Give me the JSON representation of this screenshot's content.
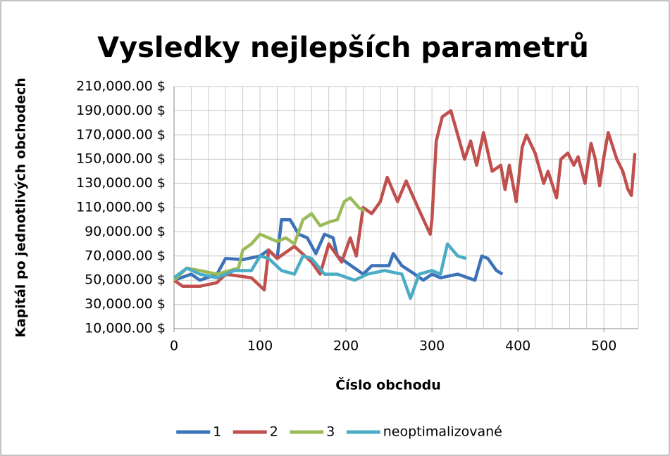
{
  "chart_data": {
    "type": "line",
    "title": "Vysledky nejlepších parametrů",
    "xlabel": "Číslo obchodu",
    "ylabel": "Kapitál po jednotlivých obchodech",
    "xlim": [
      0,
      540
    ],
    "xticks": [
      0,
      100,
      200,
      300,
      400,
      500
    ],
    "xminor": 20,
    "ylim": [
      10000,
      210000
    ],
    "yticks": [
      {
        "value": 10000,
        "label": "10,000.00 $"
      },
      {
        "value": 30000,
        "label": "30,000.00 $"
      },
      {
        "value": 50000,
        "label": "50,000.00 $"
      },
      {
        "value": 70000,
        "label": "70,000.00 $"
      },
      {
        "value": 90000,
        "label": "90,000.00 $"
      },
      {
        "value": 110000,
        "label": "110,000.00 $"
      },
      {
        "value": 130000,
        "label": "130,000.00 $"
      },
      {
        "value": 150000,
        "label": "150,000.00 $"
      },
      {
        "value": 170000,
        "label": "170,000.00 $"
      },
      {
        "value": 190000,
        "label": "190,000.00 $"
      },
      {
        "value": 210000,
        "label": "210,000.00 $"
      }
    ],
    "grid": true,
    "legend": "bottom",
    "series": [
      {
        "name": "1",
        "color": "#3c72b8",
        "x": [
          0,
          20,
          30,
          50,
          60,
          80,
          100,
          110,
          120,
          125,
          135,
          145,
          155,
          165,
          175,
          185,
          190,
          200,
          210,
          220,
          230,
          250,
          255,
          265,
          280,
          290,
          300,
          310,
          330,
          350,
          358,
          365,
          375,
          382
        ],
        "values": [
          50000,
          55000,
          50000,
          55000,
          68000,
          67000,
          70000,
          75000,
          68000,
          100000,
          100000,
          88000,
          85000,
          72000,
          88000,
          85000,
          70000,
          65000,
          60000,
          55000,
          62000,
          62000,
          72000,
          62000,
          55000,
          50000,
          55000,
          52000,
          55000,
          50000,
          70000,
          68000,
          58000,
          55000
        ]
      },
      {
        "name": "2",
        "color": "#c0504d",
        "x": [
          0,
          10,
          30,
          50,
          60,
          90,
          105,
          110,
          120,
          140,
          160,
          170,
          180,
          195,
          205,
          212,
          220,
          230,
          240,
          248,
          260,
          270,
          285,
          298,
          300,
          305,
          312,
          322,
          330,
          338,
          345,
          352,
          360,
          370,
          380,
          385,
          390,
          398,
          405,
          410,
          420,
          430,
          435,
          445,
          450,
          458,
          465,
          470,
          478,
          485,
          490,
          495,
          500,
          505,
          515,
          522,
          528,
          532,
          536
        ],
        "values": [
          50000,
          45000,
          45000,
          48000,
          55000,
          52000,
          42000,
          75000,
          68000,
          78000,
          65000,
          55000,
          80000,
          65000,
          85000,
          70000,
          110000,
          105000,
          115000,
          135000,
          115000,
          132000,
          108000,
          88000,
          100000,
          165000,
          185000,
          190000,
          170000,
          150000,
          165000,
          145000,
          172000,
          140000,
          145000,
          125000,
          145000,
          115000,
          160000,
          170000,
          155000,
          130000,
          140000,
          118000,
          150000,
          155000,
          145000,
          152000,
          130000,
          163000,
          150000,
          128000,
          152000,
          172000,
          150000,
          140000,
          125000,
          120000,
          155000
        ]
      },
      {
        "name": "3",
        "color": "#9bbb59",
        "x": [
          0,
          15,
          30,
          50,
          75,
          80,
          90,
          100,
          110,
          120,
          130,
          140,
          150,
          160,
          170,
          180,
          190,
          198,
          205,
          215,
          222
        ],
        "values": [
          50000,
          60000,
          58000,
          55000,
          60000,
          75000,
          80000,
          88000,
          85000,
          82000,
          85000,
          80000,
          100000,
          105000,
          95000,
          98000,
          100000,
          115000,
          118000,
          110000,
          107000
        ]
      },
      {
        "name": "neoptimalizované",
        "color": "#4bacc6",
        "x": [
          0,
          15,
          30,
          50,
          70,
          90,
          100,
          110,
          125,
          140,
          150,
          160,
          175,
          190,
          210,
          225,
          245,
          265,
          275,
          285,
          300,
          310,
          318,
          330,
          340
        ],
        "values": [
          52000,
          60000,
          55000,
          52000,
          58000,
          58000,
          70000,
          68000,
          58000,
          55000,
          70000,
          68000,
          55000,
          55000,
          50000,
          55000,
          58000,
          55000,
          35000,
          55000,
          58000,
          55000,
          80000,
          70000,
          68000
        ]
      }
    ]
  }
}
